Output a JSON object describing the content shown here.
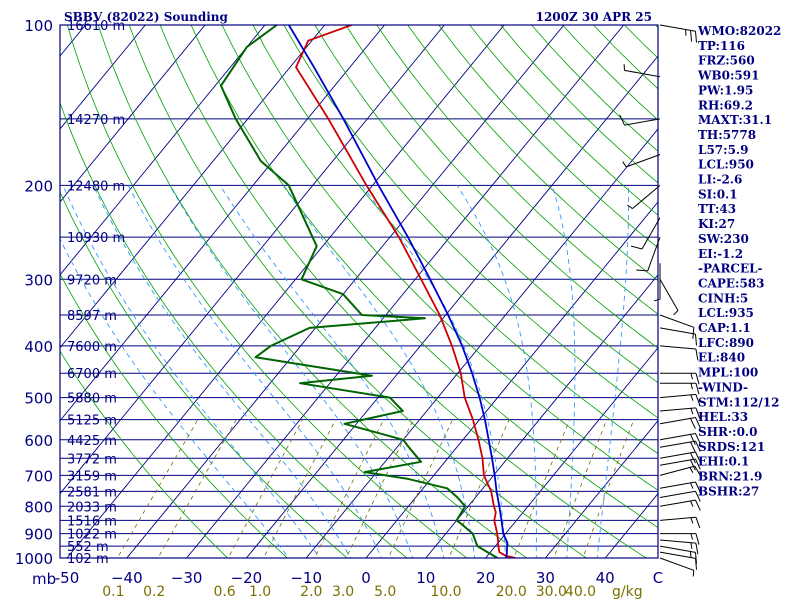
{
  "title_left": "SBBV (82022) Sounding",
  "title_right": "1200Z 30 APR 25",
  "chart_data": {
    "type": "line",
    "diagram": "skew-T log-P",
    "y_axis_label": "mb",
    "pressure_ticks": [
      100,
      200,
      300,
      400,
      500,
      600,
      700,
      800,
      900,
      1000
    ],
    "pressure_range": [
      1000,
      100
    ],
    "temperature_ticks": [
      -50,
      -40,
      -30,
      -20,
      -10,
      0,
      10,
      20,
      30,
      40
    ],
    "temperature_tick_labels": [
      "-50",
      "−40",
      "−30",
      "−20",
      "−10",
      "0",
      "10",
      "20",
      "30",
      "40"
    ],
    "temperature_axis_end_label": "C",
    "mixing_ratio_ticks": [
      0.1,
      0.2,
      0.6,
      1.0,
      2.0,
      3.0,
      5.0,
      10.0,
      20.0,
      30.0,
      40.0
    ],
    "mixing_ratio_labels": [
      "0.1",
      "0.2",
      "0.6",
      "1.0",
      "2.0",
      "3.0",
      "5.0",
      "10.0",
      "20.0",
      "30.0",
      "40.0"
    ],
    "mixing_ratio_unit": "g/kg",
    "height_levels": [
      {
        "p": 100,
        "label": "16610 m"
      },
      {
        "p": 150,
        "label": "14270 m"
      },
      {
        "p": 200,
        "label": "12480 m"
      },
      {
        "p": 250,
        "label": "10930 m"
      },
      {
        "p": 300,
        "label": "9720 m"
      },
      {
        "p": 350,
        "label": "8597 m"
      },
      {
        "p": 400,
        "label": "7600 m"
      },
      {
        "p": 450,
        "label": "6700 m"
      },
      {
        "p": 500,
        "label": "5880 m"
      },
      {
        "p": 550,
        "label": "5125 m"
      },
      {
        "p": 600,
        "label": "4425 m"
      },
      {
        "p": 650,
        "label": "3772 m"
      },
      {
        "p": 700,
        "label": "3159 m"
      },
      {
        "p": 750,
        "label": "2581 m"
      },
      {
        "p": 800,
        "label": "2033 m"
      },
      {
        "p": 850,
        "label": "1516 m"
      },
      {
        "p": 900,
        "label": "1022 m"
      },
      {
        "p": 950,
        "label": "552 m"
      },
      {
        "p": 1000,
        "label": "102 m"
      }
    ],
    "series": [
      {
        "name": "temperature",
        "color": "#cc0000",
        "points": [
          {
            "p": 1000,
            "t": 25.0
          },
          {
            "p": 990,
            "t": 23.0
          },
          {
            "p": 975,
            "t": 21.5
          },
          {
            "p": 950,
            "t": 20.5
          },
          {
            "p": 925,
            "t": 19.6
          },
          {
            "p": 900,
            "t": 18.6
          },
          {
            "p": 850,
            "t": 16.3
          },
          {
            "p": 820,
            "t": 15.4
          },
          {
            "p": 800,
            "t": 14.3
          },
          {
            "p": 750,
            "t": 11.8
          },
          {
            "p": 700,
            "t": 8.4
          },
          {
            "p": 650,
            "t": 5.8
          },
          {
            "p": 600,
            "t": 2.6
          },
          {
            "p": 550,
            "t": -1.1
          },
          {
            "p": 500,
            "t": -5.5
          },
          {
            "p": 450,
            "t": -9.5
          },
          {
            "p": 400,
            "t": -14.7
          },
          {
            "p": 350,
            "t": -21.0
          },
          {
            "p": 300,
            "t": -29.0
          },
          {
            "p": 250,
            "t": -38.5
          },
          {
            "p": 200,
            "t": -51.0
          },
          {
            "p": 150,
            "t": -66.5
          },
          {
            "p": 120,
            "t": -79.0
          },
          {
            "p": 107,
            "t": -80.6
          },
          {
            "p": 100,
            "t": -75.5
          }
        ]
      },
      {
        "name": "dewpoint",
        "color": "#006400",
        "points": [
          {
            "p": 1000,
            "t": 22.0
          },
          {
            "p": 975,
            "t": 19.5
          },
          {
            "p": 950,
            "t": 17.0
          },
          {
            "p": 900,
            "t": 14.5
          },
          {
            "p": 860,
            "t": 11.0
          },
          {
            "p": 850,
            "t": 10.0
          },
          {
            "p": 800,
            "t": 9.5
          },
          {
            "p": 770,
            "t": 7.0
          },
          {
            "p": 740,
            "t": 4.0
          },
          {
            "p": 710,
            "t": -4.0
          },
          {
            "p": 690,
            "t": -12.0
          },
          {
            "p": 660,
            "t": -4.0
          },
          {
            "p": 620,
            "t": -8.0
          },
          {
            "p": 600,
            "t": -10.0
          },
          {
            "p": 560,
            "t": -22.0
          },
          {
            "p": 530,
            "t": -14.0
          },
          {
            "p": 500,
            "t": -18.0
          },
          {
            "p": 470,
            "t": -35.0
          },
          {
            "p": 455,
            "t": -24.0
          },
          {
            "p": 420,
            "t": -46.0
          },
          {
            "p": 400,
            "t": -45.0
          },
          {
            "p": 370,
            "t": -41.0
          },
          {
            "p": 355,
            "t": -23.0
          },
          {
            "p": 350,
            "t": -34.0
          },
          {
            "p": 320,
            "t": -40.0
          },
          {
            "p": 300,
            "t": -49.0
          },
          {
            "p": 260,
            "t": -51.0
          },
          {
            "p": 200,
            "t": -64.0
          },
          {
            "p": 180,
            "t": -72.0
          },
          {
            "p": 150,
            "t": -82.0
          },
          {
            "p": 130,
            "t": -89.0
          },
          {
            "p": 110,
            "t": -90.0
          },
          {
            "p": 100,
            "t": -88.0
          }
        ]
      },
      {
        "name": "parcel",
        "color": "#0000cc",
        "points": [
          {
            "p": 1000,
            "t": 23.5
          },
          {
            "p": 935,
            "t": 21.5
          },
          {
            "p": 900,
            "t": 19.6
          },
          {
            "p": 850,
            "t": 17.5
          },
          {
            "p": 800,
            "t": 15.2
          },
          {
            "p": 750,
            "t": 12.7
          },
          {
            "p": 700,
            "t": 10.2
          },
          {
            "p": 650,
            "t": 7.4
          },
          {
            "p": 600,
            "t": 4.3
          },
          {
            "p": 550,
            "t": 0.9
          },
          {
            "p": 500,
            "t": -3.0
          },
          {
            "p": 450,
            "t": -7.6
          },
          {
            "p": 400,
            "t": -13.0
          },
          {
            "p": 350,
            "t": -19.6
          },
          {
            "p": 300,
            "t": -27.5
          },
          {
            "p": 250,
            "t": -37.0
          },
          {
            "p": 200,
            "t": -49.0
          },
          {
            "p": 150,
            "t": -64.0
          },
          {
            "p": 120,
            "t": -76.0
          },
          {
            "p": 100,
            "t": -86.0
          }
        ]
      }
    ],
    "wind_barbs": [
      {
        "p": 1000,
        "dir": 110,
        "spd": 5
      },
      {
        "p": 975,
        "dir": 100,
        "spd": 10
      },
      {
        "p": 950,
        "dir": 100,
        "spd": 15
      },
      {
        "p": 925,
        "dir": 95,
        "spd": 15
      },
      {
        "p": 900,
        "dir": 90,
        "spd": 15
      },
      {
        "p": 850,
        "dir": 85,
        "spd": 15
      },
      {
        "p": 800,
        "dir": 80,
        "spd": 15
      },
      {
        "p": 770,
        "dir": 80,
        "spd": 10
      },
      {
        "p": 740,
        "dir": 80,
        "spd": 15
      },
      {
        "p": 700,
        "dir": 75,
        "spd": 15
      },
      {
        "p": 670,
        "dir": 80,
        "spd": 20
      },
      {
        "p": 650,
        "dir": 80,
        "spd": 20
      },
      {
        "p": 620,
        "dir": 80,
        "spd": 20
      },
      {
        "p": 600,
        "dir": 80,
        "spd": 20
      },
      {
        "p": 560,
        "dir": 80,
        "spd": 20
      },
      {
        "p": 530,
        "dir": 85,
        "spd": 15
      },
      {
        "p": 500,
        "dir": 85,
        "spd": 15
      },
      {
        "p": 470,
        "dir": 90,
        "spd": 15
      },
      {
        "p": 450,
        "dir": 90,
        "spd": 15
      },
      {
        "p": 400,
        "dir": 95,
        "spd": 10
      },
      {
        "p": 370,
        "dir": 100,
        "spd": 10
      },
      {
        "p": 350,
        "dir": 110,
        "spd": 10
      },
      {
        "p": 300,
        "dir": 150,
        "spd": 5
      },
      {
        "p": 280,
        "dir": 180,
        "spd": 5
      },
      {
        "p": 250,
        "dir": 200,
        "spd": 10
      },
      {
        "p": 230,
        "dir": 210,
        "spd": 10
      },
      {
        "p": 200,
        "dir": 230,
        "spd": 5
      },
      {
        "p": 175,
        "dir": 250,
        "spd": 5
      },
      {
        "p": 150,
        "dir": 260,
        "spd": 10
      },
      {
        "p": 125,
        "dir": 280,
        "spd": 5
      },
      {
        "p": 100,
        "dir": 100,
        "spd": 25
      }
    ]
  },
  "station_info": [
    "WMO:82022",
    "TP:116",
    "FRZ:560",
    "WB0:591",
    "PW:1.95",
    "RH:69.2",
    "MAXT:31.1",
    "TH:5778",
    "L57:5.9",
    "LCL:950",
    "LI:-2.6",
    "SI:0.1",
    "TT:43",
    "KI:27",
    "SW:230",
    "EI:-1.2",
    "-PARCEL-",
    "CAPE:583",
    "CINH:5",
    "LCL:935",
    "CAP:1.1",
    "LFC:890",
    "EL:840",
    "MPL:100",
    "-WIND-",
    "STM:112/12",
    "HEL:33",
    "SHR·:0.0",
    "SRDS:121",
    "EHI:0.1",
    "BRN:21.9",
    "BSHR:27"
  ],
  "colors": {
    "frame": "#000080",
    "isobar": "#000080",
    "isotherm": "#000080",
    "dry_adiabat": "#00a000",
    "moist_adiabat": "#3399ff",
    "mixing_ratio": "#6e6e00",
    "temperature": "#cc0000",
    "dewpoint": "#006400",
    "parcel": "#0000cc",
    "barb": "#000000"
  }
}
